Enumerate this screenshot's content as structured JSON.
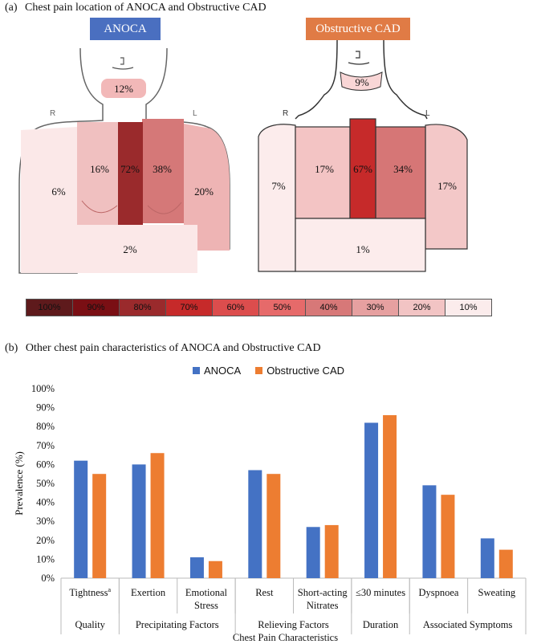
{
  "panel_a": {
    "label": "(a)",
    "title": "Chest pain location of ANOCA and Obstructive CAD",
    "left_tag": "ANOCA",
    "right_tag": "Obstructive CAD",
    "side_r": "R",
    "side_l": "L",
    "anoca": {
      "jaw": "12%",
      "right_chest": "16%",
      "sternum": "72%",
      "left_chest": "38%",
      "right_arm": "6%",
      "left_arm": "20%",
      "abdomen": "2%"
    },
    "cad": {
      "jaw": "9%",
      "right_chest": "17%",
      "sternum": "67%",
      "left_chest": "34%",
      "right_arm": "7%",
      "left_arm": "17%",
      "abdomen": "1%"
    },
    "scale_labels": [
      "100%",
      "90%",
      "80%",
      "70%",
      "60%",
      "50%",
      "40%",
      "30%",
      "20%",
      "10%"
    ],
    "colors": {
      "tag_anoca": "#4a6fc0",
      "tag_cad": "#e07b45",
      "scale": [
        "#5e1a1c",
        "#7a0f14",
        "#9a2a2c",
        "#c62a2a",
        "#dc4d4d",
        "#e66a6a",
        "#d77878",
        "#e6a0a0",
        "#f2c4c4",
        "#fbecec"
      ]
    }
  },
  "panel_b": {
    "label": "(b)",
    "title": "Other chest pain characteristics of ANOCA and Obstructive CAD"
  },
  "chart_data": {
    "type": "bar",
    "ylabel": "Prevalence (%)",
    "xlabel": "Chest Pain Characteristics",
    "ylim": [
      0,
      100
    ],
    "yticks": [
      "0%",
      "10%",
      "20%",
      "30%",
      "40%",
      "50%",
      "60%",
      "70%",
      "80%",
      "90%",
      "100%"
    ],
    "categories": [
      {
        "line1": "Tightness",
        "sup": "a",
        "line2": ""
      },
      {
        "line1": "Exertion",
        "sup": "",
        "line2": ""
      },
      {
        "line1": "Emotional",
        "sup": "",
        "line2": "Stress"
      },
      {
        "line1": "Rest",
        "sup": "",
        "line2": ""
      },
      {
        "line1": "Short-acting",
        "sup": "",
        "line2": "Nitrates"
      },
      {
        "line1": "≤30 minutes",
        "sup": "",
        "line2": ""
      },
      {
        "line1": "Dyspnoea",
        "sup": "",
        "line2": ""
      },
      {
        "line1": "Sweating",
        "sup": "",
        "line2": ""
      }
    ],
    "groups": [
      {
        "label": "Quality",
        "start": 0,
        "end": 0
      },
      {
        "label": "Precipitating Factors",
        "start": 1,
        "end": 2
      },
      {
        "label": "Relieving Factors",
        "start": 3,
        "end": 4
      },
      {
        "label": "Duration",
        "start": 5,
        "end": 5
      },
      {
        "label": "Associated Symptoms",
        "start": 6,
        "end": 7
      }
    ],
    "series": [
      {
        "name": "ANOCA",
        "color": "#4472c4",
        "values": [
          62,
          60,
          11,
          57,
          27,
          82,
          49,
          21
        ]
      },
      {
        "name": "Obstructive CAD",
        "color": "#ed7d31",
        "values": [
          55,
          66,
          9,
          55,
          28,
          86,
          44,
          15
        ]
      }
    ],
    "legend": "top-center",
    "grid": false
  }
}
